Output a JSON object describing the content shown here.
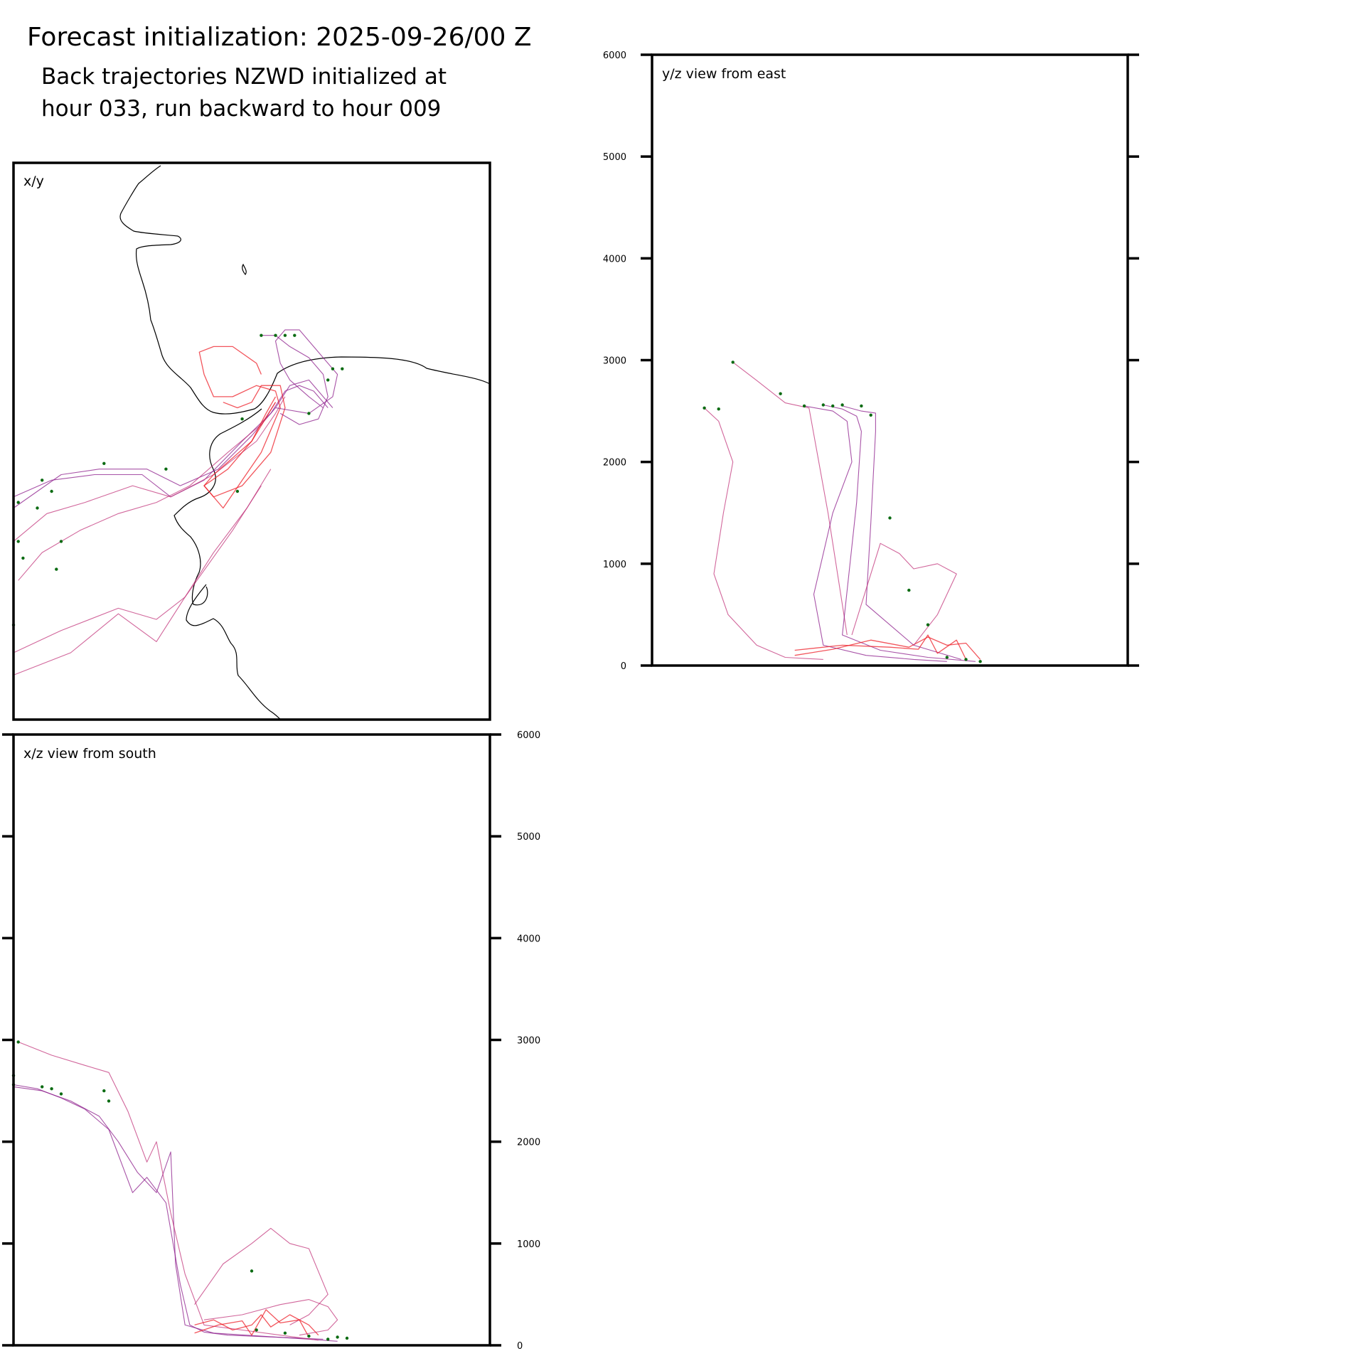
{
  "header": {
    "title": "Forecast initialization: 2025-09-26/00 Z",
    "subtitle_line1": "Back trajectories NZWD initialized at",
    "subtitle_line2": "hour 033, run backward to hour 009"
  },
  "colors": {
    "trajectory_purple": "#8b1a89",
    "trajectory_magenta": "#c2337a",
    "trajectory_red": "#ee1c25",
    "start_marker": "#0a6b12",
    "coastline": "#000000"
  },
  "chart_data": [
    {
      "type": "line",
      "panel": "x/y",
      "label": "x/y",
      "title": "",
      "xlabel": "",
      "ylabel": "",
      "description_coastline": "map coastline outline",
      "series": [
        {
          "name": "",
          "color": "trajectory_purple",
          "x": [
            0.0,
            0.1,
            0.18,
            0.28,
            0.35,
            0.43,
            0.5,
            0.55,
            0.58,
            0.62,
            0.65,
            0.67
          ],
          "y": [
            0.62,
            0.56,
            0.55,
            0.55,
            0.58,
            0.55,
            0.49,
            0.44,
            0.4,
            0.39,
            0.42,
            0.44
          ]
        },
        {
          "name": "",
          "color": "trajectory_purple",
          "x": [
            0.0,
            0.08,
            0.17,
            0.27,
            0.33,
            0.4,
            0.48,
            0.54,
            0.57,
            0.6,
            0.63,
            0.66
          ],
          "y": [
            0.6,
            0.57,
            0.56,
            0.56,
            0.6,
            0.57,
            0.5,
            0.45,
            0.41,
            0.4,
            0.41,
            0.44
          ]
        },
        {
          "name": "",
          "color": "trajectory_magenta",
          "x": [
            0.0,
            0.07,
            0.15,
            0.25,
            0.33,
            0.42,
            0.51,
            0.55,
            0.57
          ],
          "y": [
            0.68,
            0.63,
            0.61,
            0.58,
            0.6,
            0.56,
            0.5,
            0.45,
            0.42
          ]
        },
        {
          "name": "",
          "color": "trajectory_magenta",
          "x": [
            0.01,
            0.06,
            0.14,
            0.22,
            0.3,
            0.37,
            0.45,
            0.52,
            0.55
          ],
          "y": [
            0.75,
            0.7,
            0.66,
            0.63,
            0.61,
            0.58,
            0.52,
            0.47,
            0.43
          ]
        },
        {
          "name": "",
          "color": "trajectory_magenta",
          "x": [
            0.0,
            0.1,
            0.22,
            0.3,
            0.36,
            0.42,
            0.49,
            0.54
          ],
          "y": [
            0.88,
            0.84,
            0.8,
            0.82,
            0.78,
            0.7,
            0.62,
            0.55
          ]
        },
        {
          "name": "",
          "color": "trajectory_magenta",
          "x": [
            0.0,
            0.12,
            0.22,
            0.3,
            0.36,
            0.41,
            0.46,
            0.52
          ],
          "y": [
            0.92,
            0.88,
            0.81,
            0.86,
            0.78,
            0.72,
            0.66,
            0.58
          ]
        },
        {
          "name": "",
          "color": "trajectory_red",
          "x": [
            0.55,
            0.53,
            0.5,
            0.45,
            0.4,
            0.42,
            0.48,
            0.54,
            0.57,
            0.56,
            0.52,
            0.5,
            0.47,
            0.44
          ],
          "y": [
            0.42,
            0.45,
            0.5,
            0.55,
            0.58,
            0.6,
            0.58,
            0.52,
            0.44,
            0.4,
            0.4,
            0.43,
            0.44,
            0.43
          ]
        },
        {
          "name": "",
          "color": "trajectory_red",
          "x": [
            0.55,
            0.5,
            0.42,
            0.4,
            0.44,
            0.52,
            0.56,
            0.55,
            0.51,
            0.46,
            0.42,
            0.4,
            0.39,
            0.42,
            0.46,
            0.51,
            0.52
          ],
          "y": [
            0.43,
            0.5,
            0.56,
            0.58,
            0.62,
            0.52,
            0.44,
            0.41,
            0.4,
            0.42,
            0.42,
            0.38,
            0.34,
            0.33,
            0.33,
            0.36,
            0.38
          ]
        },
        {
          "name": "",
          "color": "trajectory_purple",
          "x": [
            0.65,
            0.62,
            0.58,
            0.56,
            0.55,
            0.57,
            0.6,
            0.63,
            0.66,
            0.68,
            0.67,
            0.62,
            0.55
          ],
          "y": [
            0.44,
            0.42,
            0.39,
            0.36,
            0.32,
            0.3,
            0.3,
            0.33,
            0.36,
            0.38,
            0.42,
            0.45,
            0.44
          ]
        },
        {
          "name": "",
          "color": "trajectory_purple",
          "x": [
            0.52,
            0.55,
            0.58,
            0.62,
            0.65,
            0.66,
            0.64,
            0.6,
            0.56
          ],
          "y": [
            0.31,
            0.31,
            0.33,
            0.35,
            0.38,
            0.42,
            0.46,
            0.47,
            0.45
          ]
        }
      ],
      "markers": [
        {
          "x": 0.52,
          "y": 0.31
        },
        {
          "x": 0.55,
          "y": 0.31
        },
        {
          "x": 0.57,
          "y": 0.31
        },
        {
          "x": 0.59,
          "y": 0.31
        },
        {
          "x": 0.67,
          "y": 0.37
        },
        {
          "x": 0.69,
          "y": 0.37
        },
        {
          "x": 0.66,
          "y": 0.39
        },
        {
          "x": 0.62,
          "y": 0.45
        },
        {
          "x": 0.01,
          "y": 0.61
        },
        {
          "x": 0.06,
          "y": 0.57
        },
        {
          "x": 0.08,
          "y": 0.59
        },
        {
          "x": 0.19,
          "y": 0.54
        },
        {
          "x": 0.32,
          "y": 0.55
        },
        {
          "x": 0.05,
          "y": 0.62
        },
        {
          "x": 0.01,
          "y": 0.68
        },
        {
          "x": 0.1,
          "y": 0.68
        },
        {
          "x": 0.02,
          "y": 0.71
        },
        {
          "x": 0.09,
          "y": 0.73
        },
        {
          "x": 0.0,
          "y": 0.83
        },
        {
          "x": 0.47,
          "y": 0.59
        },
        {
          "x": 0.48,
          "y": 0.46
        }
      ]
    },
    {
      "type": "line",
      "panel": "y/z",
      "label": "y/z view from east",
      "title": "",
      "xlabel": "",
      "ylabel": "",
      "yticks": [
        0,
        1000,
        2000,
        3000,
        4000,
        5000,
        6000
      ],
      "ylim": [
        0,
        6000
      ],
      "tick_side": "left",
      "series": [
        {
          "name": "",
          "color": "trajectory_magenta",
          "x": [
            0.11,
            0.14,
            0.17,
            0.15,
            0.13,
            0.16,
            0.22,
            0.28,
            0.36
          ],
          "y": [
            2530,
            2400,
            2000,
            1500,
            900,
            500,
            200,
            80,
            60
          ]
        },
        {
          "name": "",
          "color": "trajectory_magenta",
          "x": [
            0.17,
            0.22,
            0.28,
            0.33,
            0.37,
            0.41
          ],
          "y": [
            2980,
            2800,
            2580,
            2530,
            1500,
            300
          ]
        },
        {
          "name": "",
          "color": "trajectory_purple",
          "x": [
            0.32,
            0.38,
            0.41,
            0.42,
            0.38,
            0.34,
            0.36,
            0.45,
            0.55,
            0.62
          ],
          "y": [
            2550,
            2500,
            2400,
            2000,
            1500,
            700,
            200,
            100,
            60,
            40
          ]
        },
        {
          "name": "",
          "color": "trajectory_purple",
          "x": [
            0.36,
            0.4,
            0.43,
            0.44,
            0.43,
            0.4,
            0.48,
            0.58,
            0.68
          ],
          "y": [
            2560,
            2520,
            2450,
            2300,
            1600,
            300,
            150,
            80,
            40
          ]
        },
        {
          "name": "",
          "color": "trajectory_purple",
          "x": [
            0.4,
            0.44,
            0.47,
            0.47,
            0.46,
            0.45,
            0.55,
            0.65
          ],
          "y": [
            2550,
            2500,
            2480,
            2300,
            1400,
            600,
            200,
            60
          ]
        },
        {
          "name": "",
          "color": "trajectory_red",
          "x": [
            0.3,
            0.4,
            0.5,
            0.56,
            0.58,
            0.6,
            0.64,
            0.66
          ],
          "y": [
            150,
            200,
            180,
            160,
            300,
            120,
            250,
            60
          ]
        },
        {
          "name": "",
          "color": "trajectory_red",
          "x": [
            0.3,
            0.38,
            0.46,
            0.54,
            0.58,
            0.62,
            0.66,
            0.69
          ],
          "y": [
            100,
            160,
            250,
            180,
            280,
            200,
            220,
            60
          ]
        },
        {
          "name": "",
          "color": "trajectory_magenta",
          "x": [
            0.42,
            0.48,
            0.52,
            0.55,
            0.6,
            0.64,
            0.6,
            0.55
          ],
          "y": [
            300,
            1200,
            1100,
            950,
            1000,
            900,
            500,
            200
          ]
        }
      ],
      "markers": [
        {
          "x": 0.11,
          "y": 2530
        },
        {
          "x": 0.14,
          "y": 2520
        },
        {
          "x": 0.17,
          "y": 2980
        },
        {
          "x": 0.27,
          "y": 2670
        },
        {
          "x": 0.32,
          "y": 2550
        },
        {
          "x": 0.36,
          "y": 2560
        },
        {
          "x": 0.38,
          "y": 2550
        },
        {
          "x": 0.4,
          "y": 2560
        },
        {
          "x": 0.44,
          "y": 2550
        },
        {
          "x": 0.46,
          "y": 2460
        },
        {
          "x": 0.5,
          "y": 1450
        },
        {
          "x": 0.54,
          "y": 740
        },
        {
          "x": 0.58,
          "y": 400
        },
        {
          "x": 0.62,
          "y": 80
        },
        {
          "x": 0.66,
          "y": 60
        },
        {
          "x": 0.69,
          "y": 40
        }
      ]
    },
    {
      "type": "line",
      "panel": "x/z",
      "label": "x/z view from south",
      "title": "",
      "xlabel": "",
      "ylabel": "",
      "yticks": [
        0,
        1000,
        2000,
        3000,
        4000,
        5000,
        6000
      ],
      "ylim": [
        0,
        6000
      ],
      "tick_side": "right",
      "series": [
        {
          "name": "",
          "color": "trajectory_purple",
          "x": [
            0.0,
            0.05,
            0.1,
            0.15,
            0.2,
            0.25,
            0.28,
            0.32,
            0.35,
            0.37,
            0.4,
            0.45,
            0.55,
            0.65
          ],
          "y": [
            2560,
            2520,
            2430,
            2320,
            2120,
            1500,
            1650,
            1400,
            600,
            200,
            130,
            100,
            80,
            60
          ]
        },
        {
          "name": "",
          "color": "trajectory_purple",
          "x": [
            0.0,
            0.06,
            0.12,
            0.18,
            0.22,
            0.26,
            0.3,
            0.33,
            0.34,
            0.36,
            0.42,
            0.52,
            0.62,
            0.68
          ],
          "y": [
            2540,
            2500,
            2400,
            2250,
            2000,
            1700,
            1500,
            1900,
            800,
            200,
            120,
            90,
            60,
            40
          ]
        },
        {
          "name": "",
          "color": "trajectory_magenta",
          "x": [
            0.01,
            0.08,
            0.15,
            0.2,
            0.24,
            0.28,
            0.3,
            0.33,
            0.36,
            0.4,
            0.48,
            0.56,
            0.64
          ],
          "y": [
            2980,
            2850,
            2750,
            2680,
            2300,
            1800,
            2000,
            1300,
            700,
            200,
            150,
            100,
            50
          ]
        },
        {
          "name": "",
          "color": "trajectory_magenta",
          "x": [
            0.38,
            0.44,
            0.5,
            0.54,
            0.58,
            0.62,
            0.66,
            0.62,
            0.58
          ],
          "y": [
            400,
            800,
            1000,
            1150,
            1000,
            950,
            500,
            300,
            200
          ]
        },
        {
          "name": "",
          "color": "trajectory_red",
          "x": [
            0.38,
            0.42,
            0.46,
            0.5,
            0.52,
            0.54,
            0.58,
            0.62,
            0.64
          ],
          "y": [
            200,
            250,
            150,
            200,
            300,
            180,
            300,
            200,
            100
          ]
        },
        {
          "name": "",
          "color": "trajectory_red",
          "x": [
            0.38,
            0.43,
            0.48,
            0.5,
            0.53,
            0.56,
            0.6,
            0.62
          ],
          "y": [
            120,
            200,
            240,
            100,
            350,
            220,
            250,
            80
          ]
        },
        {
          "name": "",
          "color": "trajectory_magenta",
          "x": [
            0.4,
            0.48,
            0.56,
            0.62,
            0.66,
            0.68,
            0.66,
            0.6
          ],
          "y": [
            250,
            300,
            400,
            450,
            380,
            250,
            150,
            100
          ]
        }
      ],
      "markers": [
        {
          "x": 0.0,
          "y": 2560
        },
        {
          "x": 0.01,
          "y": 2980
        },
        {
          "x": 0.0,
          "y": 2650
        },
        {
          "x": 0.06,
          "y": 2540
        },
        {
          "x": 0.08,
          "y": 2520
        },
        {
          "x": 0.1,
          "y": 2470
        },
        {
          "x": 0.19,
          "y": 2500
        },
        {
          "x": 0.2,
          "y": 2400
        },
        {
          "x": 0.5,
          "y": 730
        },
        {
          "x": 0.51,
          "y": 150
        },
        {
          "x": 0.57,
          "y": 120
        },
        {
          "x": 0.62,
          "y": 90
        },
        {
          "x": 0.66,
          "y": 60
        },
        {
          "x": 0.68,
          "y": 80
        },
        {
          "x": 0.7,
          "y": 70
        }
      ]
    }
  ]
}
